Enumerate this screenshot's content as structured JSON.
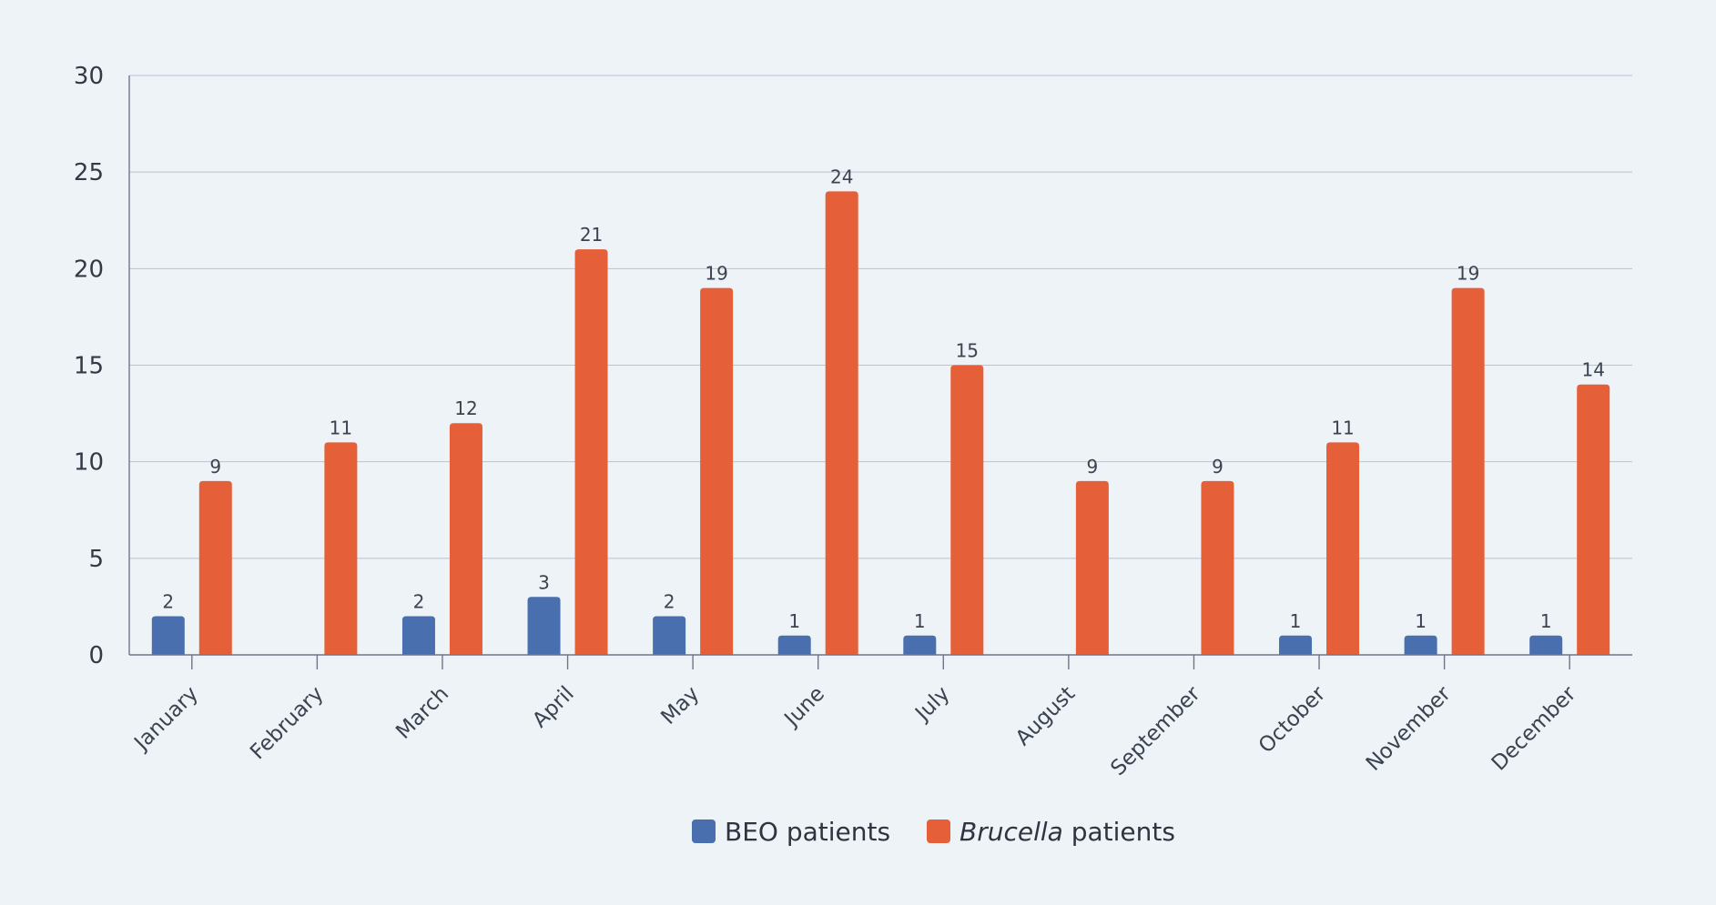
{
  "chart_data": {
    "type": "bar",
    "categories": [
      "January",
      "February",
      "March",
      "April",
      "May",
      "June",
      "July",
      "August",
      "September",
      "October",
      "November",
      "December"
    ],
    "series": [
      {
        "name": "BEO patients",
        "color": "#4a6fae",
        "values": [
          2,
          null,
          2,
          3,
          2,
          1,
          1,
          null,
          null,
          1,
          1,
          1
        ]
      },
      {
        "name": "Brucella patients",
        "name_italic_part": "Brucella",
        "name_rest": " patients",
        "color": "#e55f38",
        "values": [
          9,
          11,
          12,
          21,
          19,
          24,
          15,
          9,
          9,
          11,
          19,
          14
        ]
      }
    ],
    "y_ticks": [
      0,
      5,
      10,
      15,
      20,
      25,
      30
    ],
    "ylim": [
      0,
      30
    ],
    "grid": true,
    "legend": "bottom-center",
    "title": "",
    "xlabel": "",
    "ylabel": ""
  }
}
